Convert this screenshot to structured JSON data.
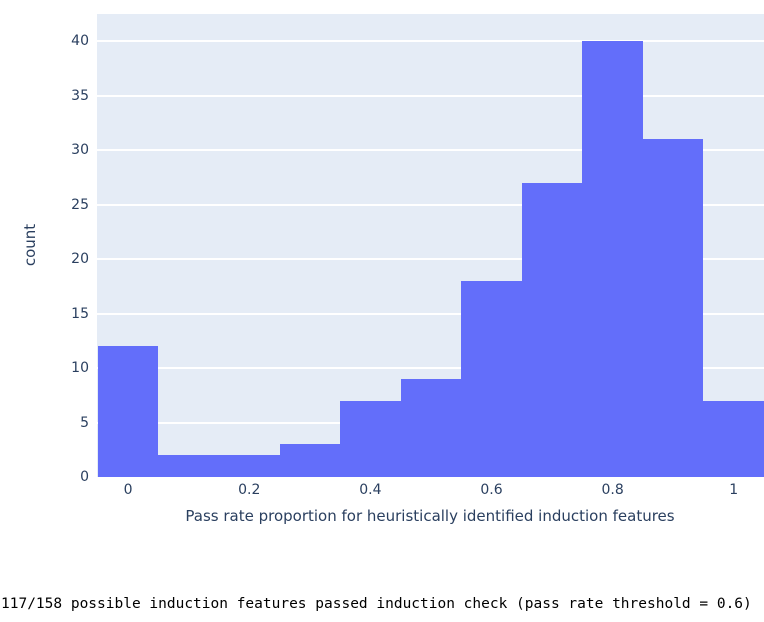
{
  "chart_data": {
    "type": "bar",
    "subtype": "histogram",
    "title": "",
    "xlabel": "Pass rate proportion for heuristically identified induction features",
    "ylabel": "count",
    "bin_width": 0.1,
    "bin_centers": [
      0,
      0.1,
      0.2,
      0.3,
      0.4,
      0.5,
      0.6,
      0.7,
      0.8,
      0.9,
      1.0
    ],
    "values": [
      12,
      2,
      2,
      3,
      7,
      9,
      18,
      27,
      40,
      31,
      7
    ],
    "x_ticks": [
      0,
      0.2,
      0.4,
      0.6,
      0.8,
      1
    ],
    "x_tick_labels": [
      "0",
      "0.2",
      "0.4",
      "0.6",
      "0.8",
      "1"
    ],
    "y_ticks": [
      0,
      5,
      10,
      15,
      20,
      25,
      30,
      35,
      40
    ],
    "y_tick_labels": [
      "0",
      "5",
      "10",
      "15",
      "20",
      "25",
      "30",
      "35",
      "40"
    ],
    "x_range": [
      -0.0514,
      1.05
    ],
    "y_range": [
      0,
      42.5
    ],
    "grid": "horizontal-only",
    "legend": "none",
    "colors": {
      "bar_fill": "#636efa",
      "plot_background": "#e5ecf6",
      "gridline": "#ffffff",
      "axis_text": "#2a3f5f",
      "caption_text": "#000000",
      "page_background": "#ffffff"
    }
  },
  "caption": "117/158 possible induction features passed induction check (pass rate threshold = 0.6)"
}
